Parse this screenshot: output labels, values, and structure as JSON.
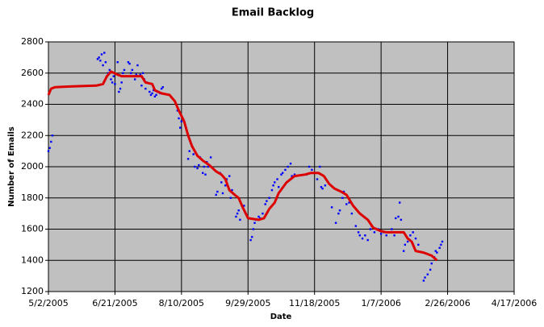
{
  "chart_data": {
    "type": "scatter",
    "title": "Email Backlog",
    "x_label": "Date",
    "y_label": "Number of Emails",
    "xlim": [
      38474,
      38824
    ],
    "xticks": [
      {
        "value": 38474,
        "label": "5/2/2005"
      },
      {
        "value": 38524,
        "label": "6/21/2005"
      },
      {
        "value": 38574,
        "label": "8/10/2005"
      },
      {
        "value": 38624,
        "label": "9/29/2005"
      },
      {
        "value": 38674,
        "label": "11/18/2005"
      },
      {
        "value": 38724,
        "label": "1/7/2006"
      },
      {
        "value": 38774,
        "label": "2/26/2006"
      },
      {
        "value": 38824,
        "label": "4/17/2006"
      }
    ],
    "ylim": [
      1200,
      2800
    ],
    "yticks": [
      1200,
      1400,
      1600,
      1800,
      2000,
      2200,
      2400,
      2600,
      2800
    ],
    "grid": true,
    "plot_background": "#c0c0c0",
    "series": [
      {
        "kind": "points",
        "color": "#0000ff",
        "x": [
          38474,
          38475,
          38476,
          38477,
          38511,
          38512,
          38513,
          38514,
          38515,
          38516,
          38517,
          38519,
          38520,
          38521,
          38522,
          38523,
          38524,
          38526,
          38527,
          38528,
          38529,
          38530,
          38531,
          38534,
          38535,
          38536,
          38537,
          38538,
          38539,
          38540,
          38541,
          38543,
          38544,
          38545,
          38546,
          38547,
          38548,
          38550,
          38551,
          38552,
          38553,
          38554,
          38555,
          38556,
          38558,
          38559,
          38560,
          38570,
          38571,
          38572,
          38573,
          38574,
          38579,
          38580,
          38581,
          38582,
          38583,
          38584,
          38586,
          38587,
          38588,
          38590,
          38591,
          38592,
          38593,
          38594,
          38596,
          38600,
          38601,
          38603,
          38604,
          38605,
          38607,
          38608,
          38610,
          38611,
          38612,
          38615,
          38616,
          38617,
          38618,
          38620,
          38621,
          38626,
          38627,
          38628,
          38629,
          38630,
          38632,
          38633,
          38635,
          38637,
          38638,
          38640,
          38642,
          38643,
          38644,
          38646,
          38647,
          38649,
          38650,
          38652,
          38654,
          38656,
          38657,
          38659,
          38668,
          38670,
          38672,
          38674,
          38676,
          38678,
          38679,
          38680,
          38682,
          38687,
          38690,
          38692,
          38693,
          38695,
          38696,
          38698,
          38700,
          38702,
          38705,
          38707,
          38708,
          38710,
          38712,
          38714,
          38716,
          38717,
          38719,
          38722,
          38724,
          38726,
          38728,
          38730,
          38732,
          38734,
          38735,
          38737,
          38738,
          38739,
          38741,
          38742,
          38744,
          38746,
          38748,
          38750,
          38752,
          38756,
          38757,
          38759,
          38761,
          38762,
          38764,
          38765,
          38766,
          38768,
          38769,
          38770
        ],
        "values": [
          2100,
          2120,
          2160,
          2200,
          2690,
          2700,
          2680,
          2720,
          2650,
          2730,
          2670,
          2600,
          2620,
          2560,
          2540,
          2580,
          2530,
          2670,
          2480,
          2500,
          2540,
          2600,
          2620,
          2670,
          2660,
          2600,
          2620,
          2580,
          2560,
          2590,
          2650,
          2590,
          2520,
          2600,
          2560,
          2500,
          2540,
          2480,
          2460,
          2470,
          2490,
          2450,
          2460,
          2480,
          2470,
          2500,
          2510,
          2400,
          2360,
          2310,
          2250,
          2290,
          2050,
          2100,
          2150,
          2130,
          2080,
          2000,
          1990,
          2010,
          2060,
          1960,
          2000,
          1950,
          2030,
          2000,
          2060,
          1820,
          1840,
          1960,
          1900,
          1830,
          1880,
          1920,
          1940,
          1800,
          1850,
          1680,
          1700,
          1720,
          1660,
          1740,
          1750,
          1530,
          1550,
          1600,
          1640,
          1660,
          1680,
          1670,
          1700,
          1760,
          1780,
          1800,
          1850,
          1880,
          1900,
          1920,
          1870,
          1950,
          1960,
          1980,
          2000,
          2020,
          1940,
          1950,
          1950,
          2000,
          1980,
          1960,
          1920,
          2000,
          1870,
          1860,
          1880,
          1740,
          1640,
          1700,
          1720,
          1800,
          1840,
          1760,
          1770,
          1700,
          1620,
          1580,
          1560,
          1540,
          1560,
          1530,
          1600,
          1620,
          1580,
          1600,
          1570,
          1580,
          1560,
          1580,
          1600,
          1560,
          1670,
          1680,
          1770,
          1660,
          1460,
          1500,
          1520,
          1560,
          1580,
          1540,
          1500,
          1270,
          1290,
          1310,
          1340,
          1380,
          1420,
          1460,
          1450,
          1480,
          1500,
          1520
        ]
      },
      {
        "kind": "line",
        "color": "#dd0000",
        "x": [
          38474,
          38476,
          38479,
          38492,
          38510,
          38515,
          38518,
          38521,
          38526,
          38529,
          38544,
          38547,
          38552,
          38554,
          38559,
          38565,
          38569,
          38572,
          38576,
          38579,
          38582,
          38586,
          38590,
          38595,
          38600,
          38604,
          38607,
          38610,
          38614,
          38617,
          38620,
          38624,
          38632,
          38636,
          38640,
          38644,
          38647,
          38653,
          38659,
          38667,
          38671,
          38677,
          38681,
          38685,
          38689,
          38694,
          38698,
          38703,
          38708,
          38714,
          38718,
          38723,
          38728,
          38735,
          38741,
          38744,
          38747,
          38750,
          38756,
          38762,
          38766
        ],
        "values": [
          2460,
          2500,
          2510,
          2515,
          2520,
          2530,
          2580,
          2610,
          2590,
          2580,
          2580,
          2540,
          2530,
          2490,
          2470,
          2460,
          2420,
          2360,
          2290,
          2200,
          2130,
          2070,
          2040,
          2010,
          1970,
          1950,
          1920,
          1850,
          1820,
          1800,
          1740,
          1670,
          1660,
          1670,
          1730,
          1770,
          1830,
          1900,
          1940,
          1950,
          1960,
          1960,
          1940,
          1890,
          1860,
          1840,
          1820,
          1750,
          1700,
          1660,
          1610,
          1590,
          1580,
          1580,
          1580,
          1540,
          1520,
          1460,
          1450,
          1430,
          1400
        ]
      }
    ]
  }
}
